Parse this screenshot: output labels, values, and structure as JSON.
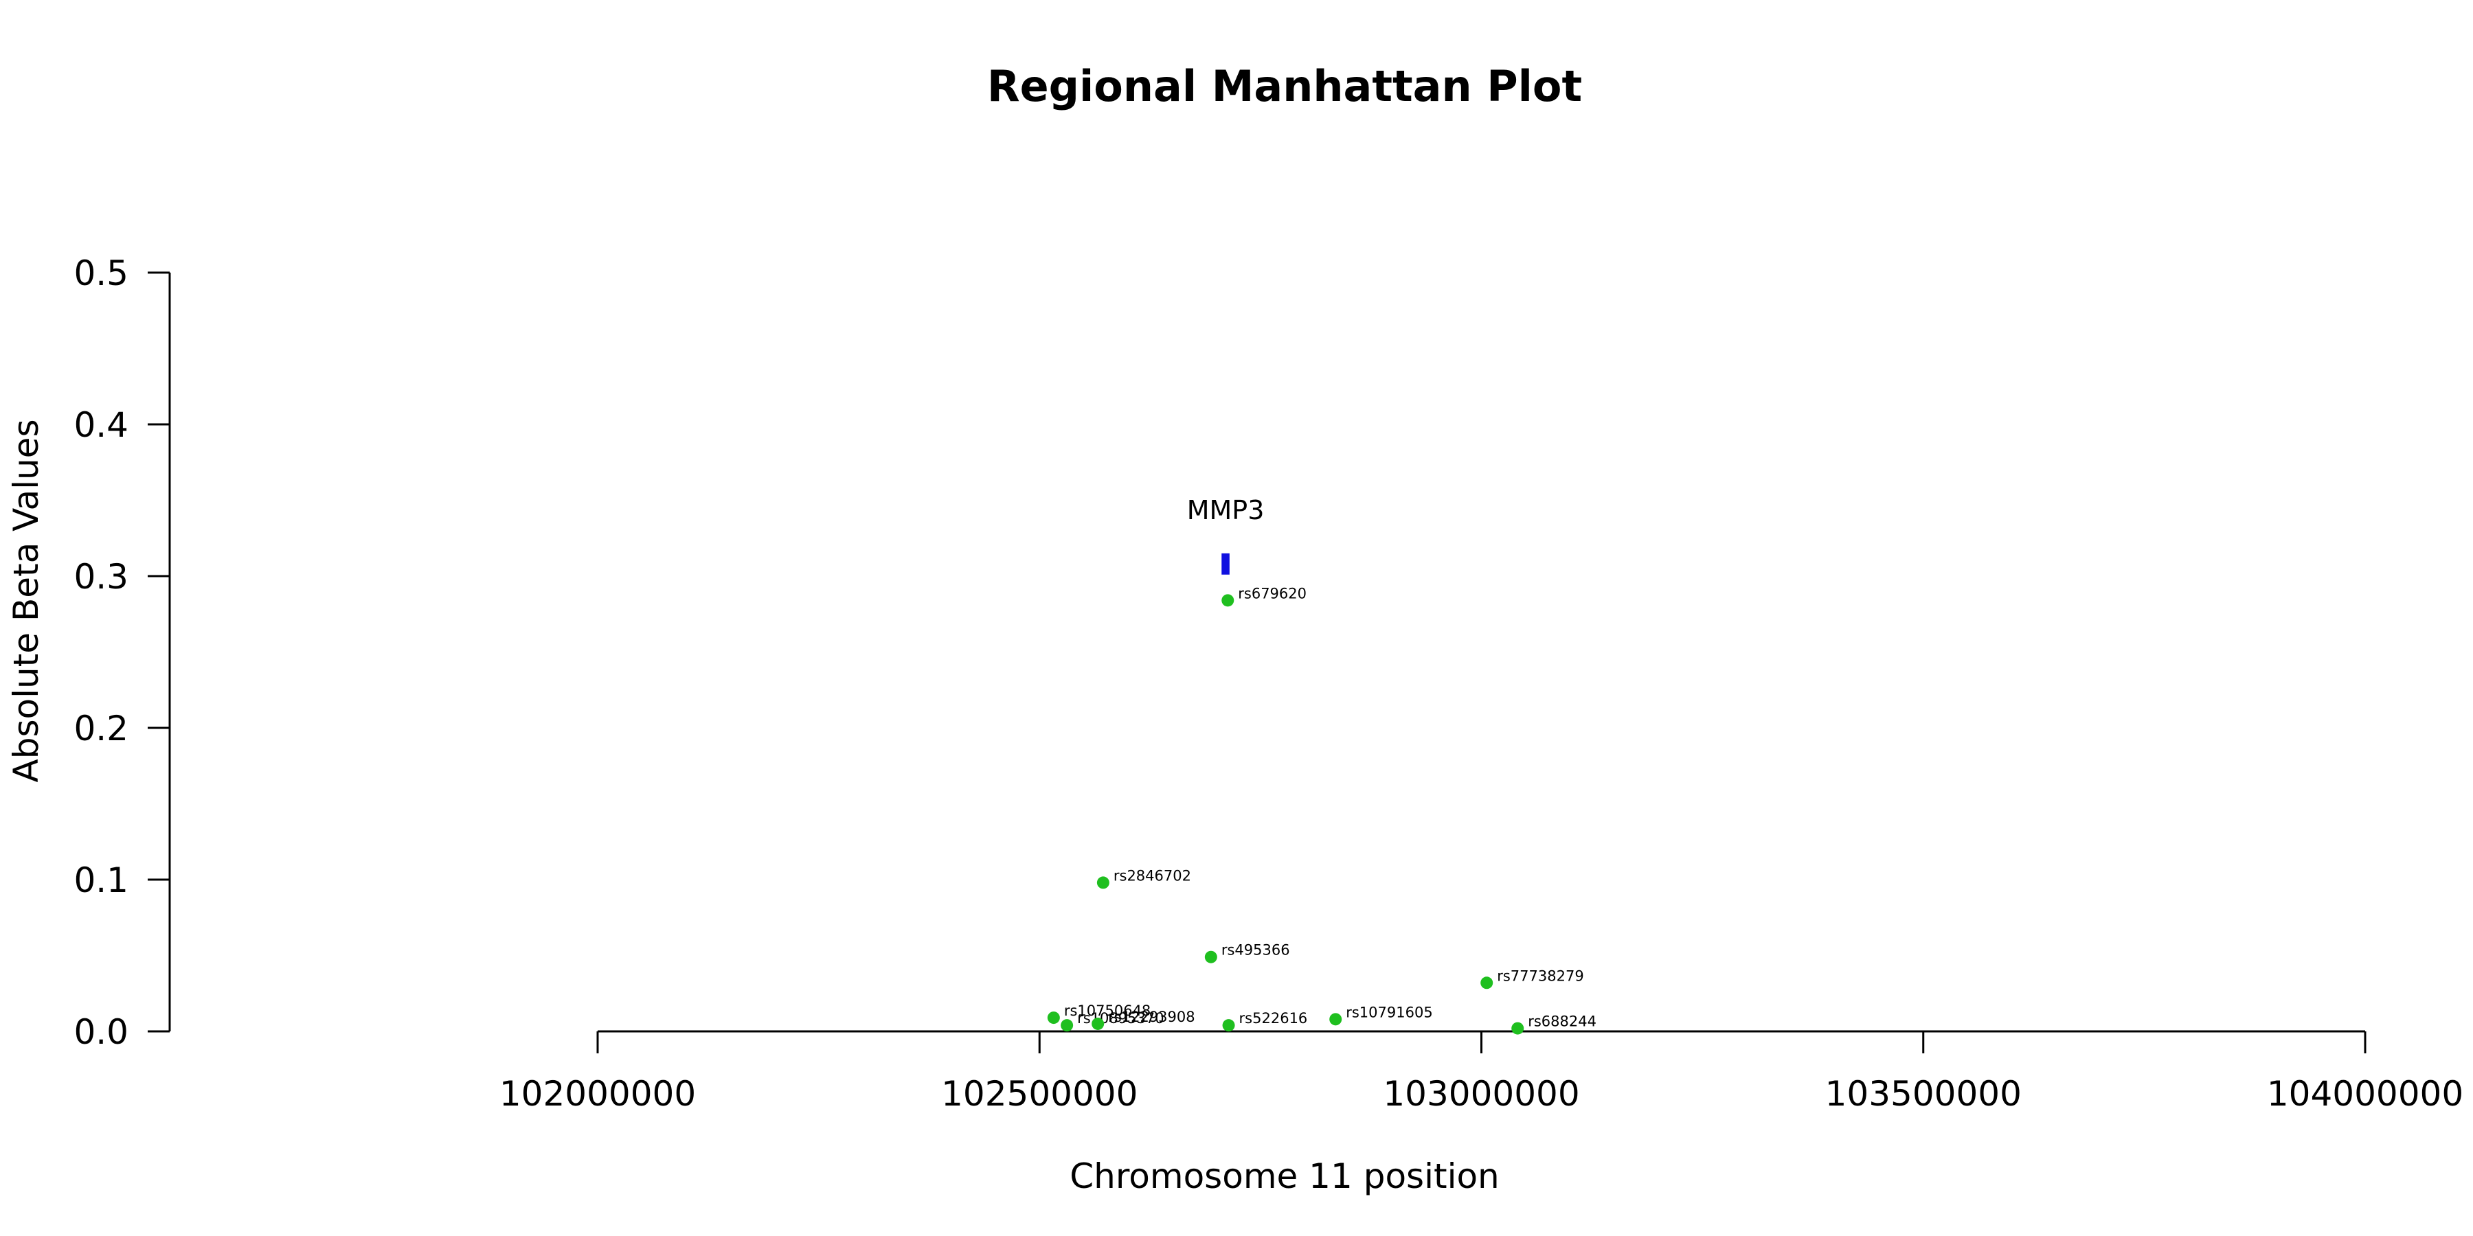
{
  "chart_data": {
    "type": "scatter",
    "title": "Regional Manhattan Plot",
    "xlabel": "Chromosome 11 position",
    "ylabel": "Absolute Beta Values",
    "xlim": [
      102000000,
      104000000
    ],
    "ylim": [
      0,
      0.5
    ],
    "x_ticks": [
      102000000,
      102500000,
      103000000,
      103500000,
      104000000
    ],
    "y_ticks": [
      0.0,
      0.1,
      0.2,
      0.3,
      0.4,
      0.5
    ],
    "x_tick_labels": [
      "102000000",
      "102500000",
      "103000000",
      "103500000",
      "104000000"
    ],
    "y_tick_labels": [
      "0.0",
      "0.1",
      "0.2",
      "0.3",
      "0.4",
      "0.5"
    ],
    "grid": false,
    "point_color": "#1fbf1f",
    "gene_color": "#1010e0",
    "genes": [
      {
        "name": "MMP3",
        "start": 102706000,
        "end": 102715000,
        "y_low": 0.301,
        "y_high": 0.315
      }
    ],
    "points": [
      {
        "label": "rs679620",
        "x": 102713000,
        "y": 0.284
      },
      {
        "label": "rs2846702",
        "x": 102572000,
        "y": 0.098
      },
      {
        "label": "rs495366",
        "x": 102694000,
        "y": 0.049
      },
      {
        "label": "rs77738279",
        "x": 103006000,
        "y": 0.032
      },
      {
        "label": "rs10750648",
        "x": 102516000,
        "y": 0.009
      },
      {
        "label": "rs10895370",
        "x": 102531000,
        "y": 0.004
      },
      {
        "label": "rs12293908",
        "x": 102566000,
        "y": 0.005
      },
      {
        "label": "rs522616",
        "x": 102714000,
        "y": 0.004
      },
      {
        "label": "rs10791605",
        "x": 102835000,
        "y": 0.008
      },
      {
        "label": "rs688244",
        "x": 103041000,
        "y": 0.002
      }
    ]
  }
}
